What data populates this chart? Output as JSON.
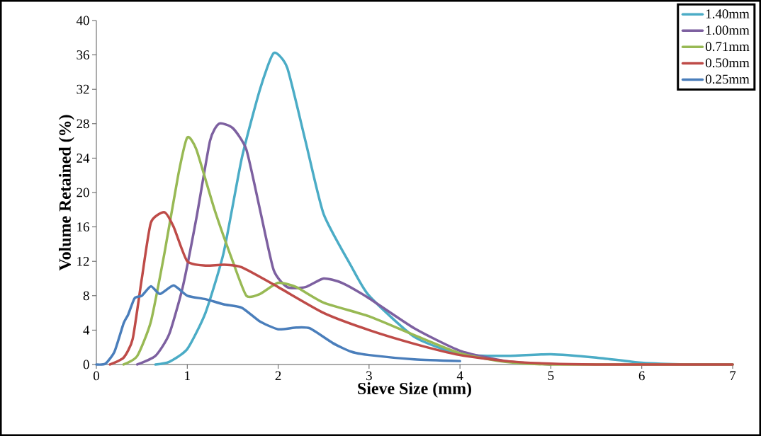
{
  "chart_data": {
    "type": "line",
    "xlabel": "Sieve Size (mm)",
    "ylabel": "Volume Retained (%)",
    "xlim": [
      0,
      7
    ],
    "xticks": [
      0,
      1,
      2,
      3,
      4,
      5,
      6,
      7
    ],
    "ylim": [
      0,
      40
    ],
    "yticks": [
      0,
      4,
      8,
      12,
      16,
      20,
      24,
      28,
      32,
      36,
      40
    ],
    "grid": false,
    "legend": "top right",
    "marker": "none",
    "line_style": "solid",
    "series": [
      {
        "name": "1.40mm",
        "color": "#4bacc6",
        "x": [
          0.65,
          0.8,
          1,
          1.2,
          1.4,
          1.6,
          1.8,
          1.95,
          2.1,
          2.3,
          2.5,
          2.8,
          3,
          3.5,
          4,
          4.5,
          5,
          5.5,
          6,
          6.5,
          7
        ],
        "values": [
          0,
          0.3,
          1.8,
          6,
          13,
          24,
          32,
          36.2,
          34.5,
          26,
          17.5,
          11.5,
          8,
          3.2,
          1.2,
          1,
          1.2,
          0.8,
          0.2,
          0,
          0
        ]
      },
      {
        "name": "1.00mm",
        "color": "#7d60a0",
        "x": [
          0.45,
          0.65,
          0.8,
          0.95,
          1.1,
          1.25,
          1.35,
          1.5,
          1.65,
          1.8,
          1.95,
          2.1,
          2.3,
          2.5,
          2.7,
          3,
          3.5,
          4,
          4.5,
          5
        ],
        "values": [
          0,
          1,
          3.5,
          9,
          17,
          26,
          28,
          27.5,
          25,
          18,
          11,
          9,
          9,
          10,
          9.5,
          7.7,
          4.2,
          1.6,
          0.4,
          0
        ]
      },
      {
        "name": "0.71mm",
        "color": "#98b954",
        "x": [
          0.3,
          0.45,
          0.6,
          0.75,
          0.9,
          1,
          1.1,
          1.3,
          1.5,
          1.65,
          1.8,
          2,
          2.2,
          2.5,
          3,
          3.5,
          4,
          4.5,
          5,
          6,
          7
        ],
        "values": [
          0,
          1,
          5,
          13,
          22,
          26.4,
          25,
          18,
          12,
          8,
          8.2,
          9.5,
          9,
          7.2,
          5.6,
          3.4,
          1.3,
          0.3,
          0,
          0,
          0
        ]
      },
      {
        "name": "0.50mm",
        "color": "#be4b48",
        "x": [
          0.15,
          0.3,
          0.4,
          0.5,
          0.6,
          0.75,
          0.85,
          1,
          1.2,
          1.4,
          1.6,
          2,
          2.5,
          3,
          3.5,
          4,
          4.5,
          5,
          5.5,
          6,
          7
        ],
        "values": [
          0,
          0.8,
          3,
          10,
          16.5,
          17.7,
          16,
          12,
          11.5,
          11.6,
          11.3,
          9,
          6,
          4,
          2.4,
          1.1,
          0.4,
          0.1,
          0,
          0,
          0
        ]
      },
      {
        "name": "0.25mm",
        "color": "#4a7ebb",
        "x": [
          0,
          0.1,
          0.2,
          0.3,
          0.35,
          0.42,
          0.5,
          0.6,
          0.7,
          0.85,
          1,
          1.2,
          1.4,
          1.6,
          1.8,
          2,
          2.2,
          2.35,
          2.6,
          2.8,
          3,
          3.5,
          4
        ],
        "values": [
          0,
          0.1,
          1.5,
          4.8,
          5.8,
          7.7,
          8,
          9.1,
          8.2,
          9.2,
          8,
          7.6,
          7,
          6.6,
          5,
          4.1,
          4.3,
          4.2,
          2.5,
          1.5,
          1.1,
          0.6,
          0.4
        ]
      }
    ]
  }
}
